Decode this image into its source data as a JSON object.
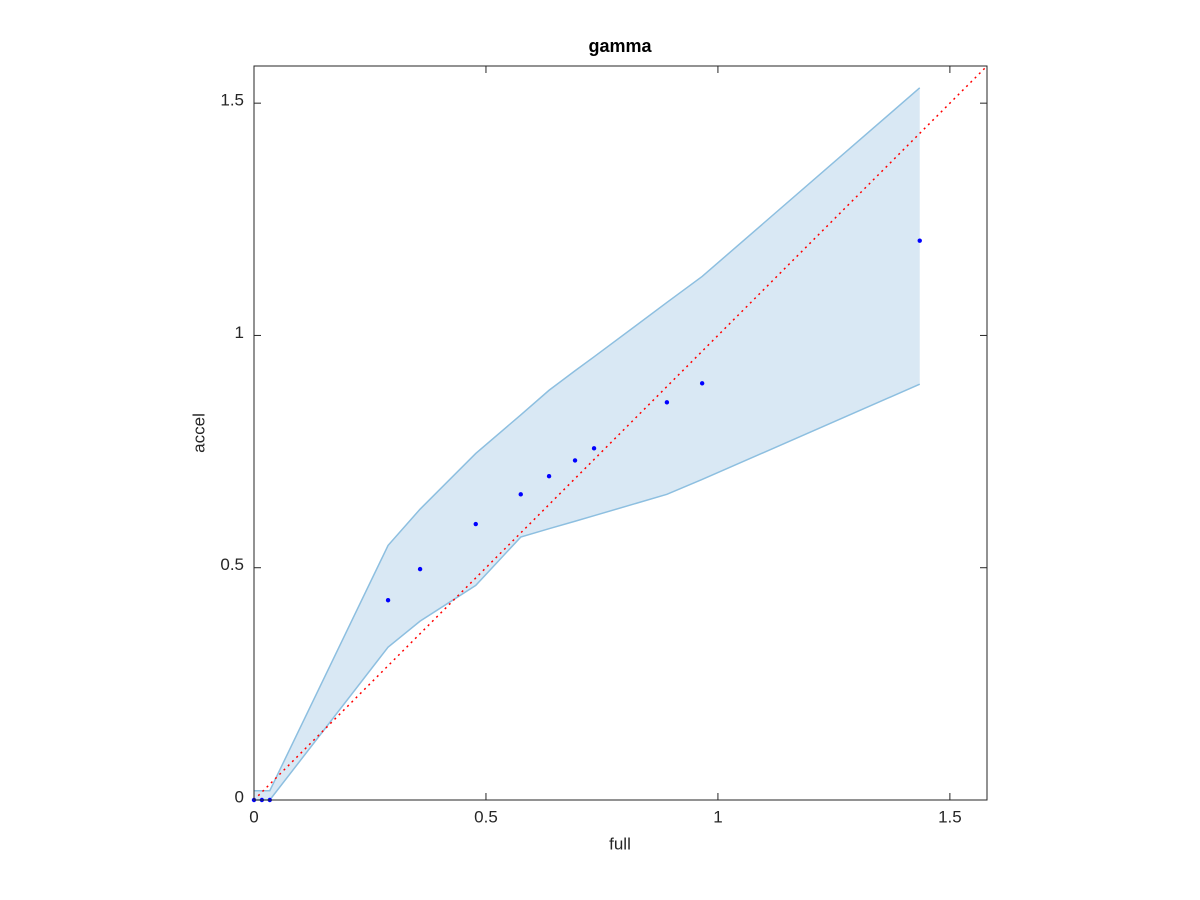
{
  "chart_data": {
    "type": "scatter",
    "title": "gamma",
    "x_label": "full",
    "y_label": "accel",
    "x": [
      0,
      0.017,
      0.034,
      0.289,
      0.358,
      0.478,
      0.575,
      0.636,
      0.692,
      0.733,
      0.89,
      0.966,
      1.435
    ],
    "values": [
      0,
      0,
      0,
      0.43,
      0.497,
      0.594,
      0.658,
      0.697,
      0.731,
      0.757,
      0.856,
      0.897,
      1.204
    ],
    "band_upper": [
      0.02,
      0.02,
      0.02,
      0.548,
      0.626,
      0.746,
      0.829,
      0.882,
      0.924,
      0.954,
      1.071,
      1.127,
      1.533
    ],
    "band_lower": [
      0,
      0,
      0,
      0.329,
      0.385,
      0.462,
      0.566,
      0.584,
      0.6,
      0.612,
      0.658,
      0.69,
      0.895
    ],
    "color": "#0000ff",
    "band_color": "#d9e8f4",
    "band_edge_color": "#8dbfe0",
    "reference": {
      "x": [
        0,
        1.58
      ],
      "values": [
        0,
        1.58
      ],
      "color": "#ff0000"
    },
    "xlim": [
      0,
      1.58
    ],
    "ylim": [
      0,
      1.58
    ],
    "xticks": [
      0,
      0.5,
      1,
      1.5
    ],
    "yticks": [
      0,
      0.5,
      1,
      1.5
    ],
    "grid": false
  }
}
